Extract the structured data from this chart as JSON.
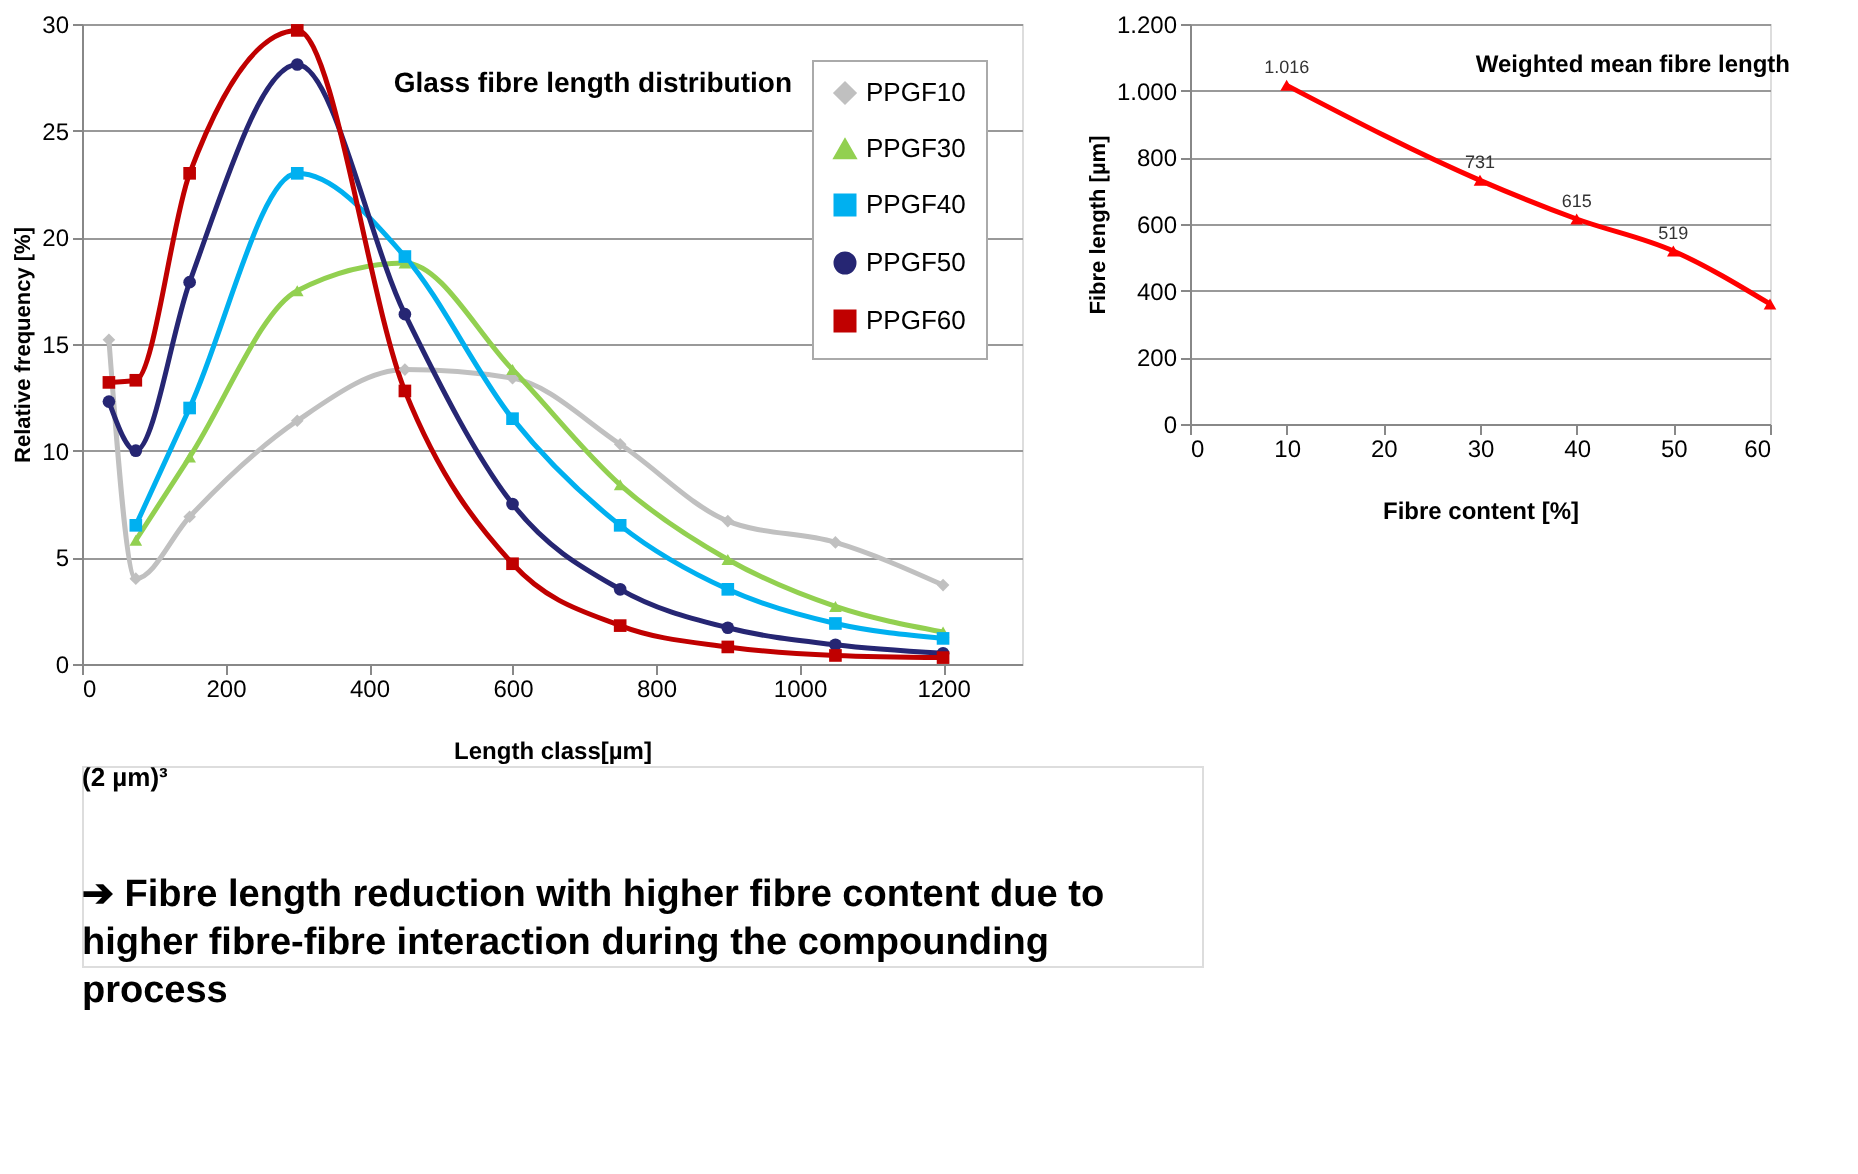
{
  "chart_data": [
    {
      "type": "line",
      "title": "Glass fibre length distribution",
      "xlabel": "Length class[µm]",
      "ylabel": "Relative frequency [%]",
      "x": [
        37.5,
        75,
        150,
        300,
        450,
        600,
        750,
        900,
        1050,
        1200
      ],
      "series": [
        {
          "name": "PPGF10",
          "color": "#c0c0c0",
          "marker": "diamond",
          "values": [
            15.2,
            4.0,
            6.9,
            11.4,
            13.8,
            13.4,
            10.3,
            6.7,
            5.7,
            3.7
          ]
        },
        {
          "name": "PPGF30",
          "color": "#92d050",
          "marker": "triangle",
          "values": [
            null,
            5.8,
            9.7,
            17.5,
            18.8,
            13.8,
            8.4,
            4.9,
            2.7,
            1.5
          ]
        },
        {
          "name": "PPGF40",
          "color": "#00b0f0",
          "marker": "square",
          "values": [
            null,
            6.5,
            12.0,
            23.0,
            19.1,
            11.5,
            6.5,
            3.5,
            1.9,
            1.2
          ]
        },
        {
          "name": "PPGF50",
          "color": "#262673",
          "marker": "circle",
          "values": [
            12.3,
            10.0,
            17.9,
            28.1,
            16.4,
            7.5,
            3.5,
            1.7,
            0.9,
            0.5
          ]
        },
        {
          "name": "PPGF60",
          "color": "#c00000",
          "marker": "square",
          "values": [
            13.2,
            13.3,
            23.0,
            29.7,
            12.8,
            4.7,
            1.8,
            0.8,
            0.4,
            0.3
          ]
        }
      ],
      "xlim": [
        0,
        1310
      ],
      "xticks": [
        0,
        200,
        400,
        600,
        800,
        1000,
        1200
      ],
      "ylim": [
        0,
        30
      ],
      "yticks": [
        0,
        5,
        10,
        15,
        20,
        25,
        30
      ],
      "grid": "y",
      "legend": "top right",
      "line_style": "solid",
      "annotations": [
        "(2 µm)³",
        "➔ Fibre length reduction with higher fibre content due to higher fibre-fibre interaction during the compounding process"
      ]
    },
    {
      "type": "line",
      "title": "Weighted mean fibre length",
      "xlabel": "Fibre content [%]",
      "ylabel": "Fibre length [µm]",
      "x": [
        10,
        30,
        40,
        50,
        60
      ],
      "series": [
        {
          "color": "#ff0000",
          "marker": "triangle",
          "values": [
            1016,
            731,
            615,
            519,
            360
          ],
          "value_labels": [
            "1.016",
            "731",
            "615",
            "519",
            null
          ]
        }
      ],
      "xlim": [
        0,
        60
      ],
      "xticks": [
        0,
        10,
        20,
        30,
        40,
        50,
        60
      ],
      "ylim": [
        0,
        1200
      ],
      "yticks": [
        0,
        200,
        400,
        600,
        800,
        {
          "value": 1000,
          "label": "1.000"
        },
        {
          "value": 1200,
          "label": "1.200"
        }
      ],
      "grid": "y",
      "legend": false,
      "line_style": "solid"
    }
  ]
}
